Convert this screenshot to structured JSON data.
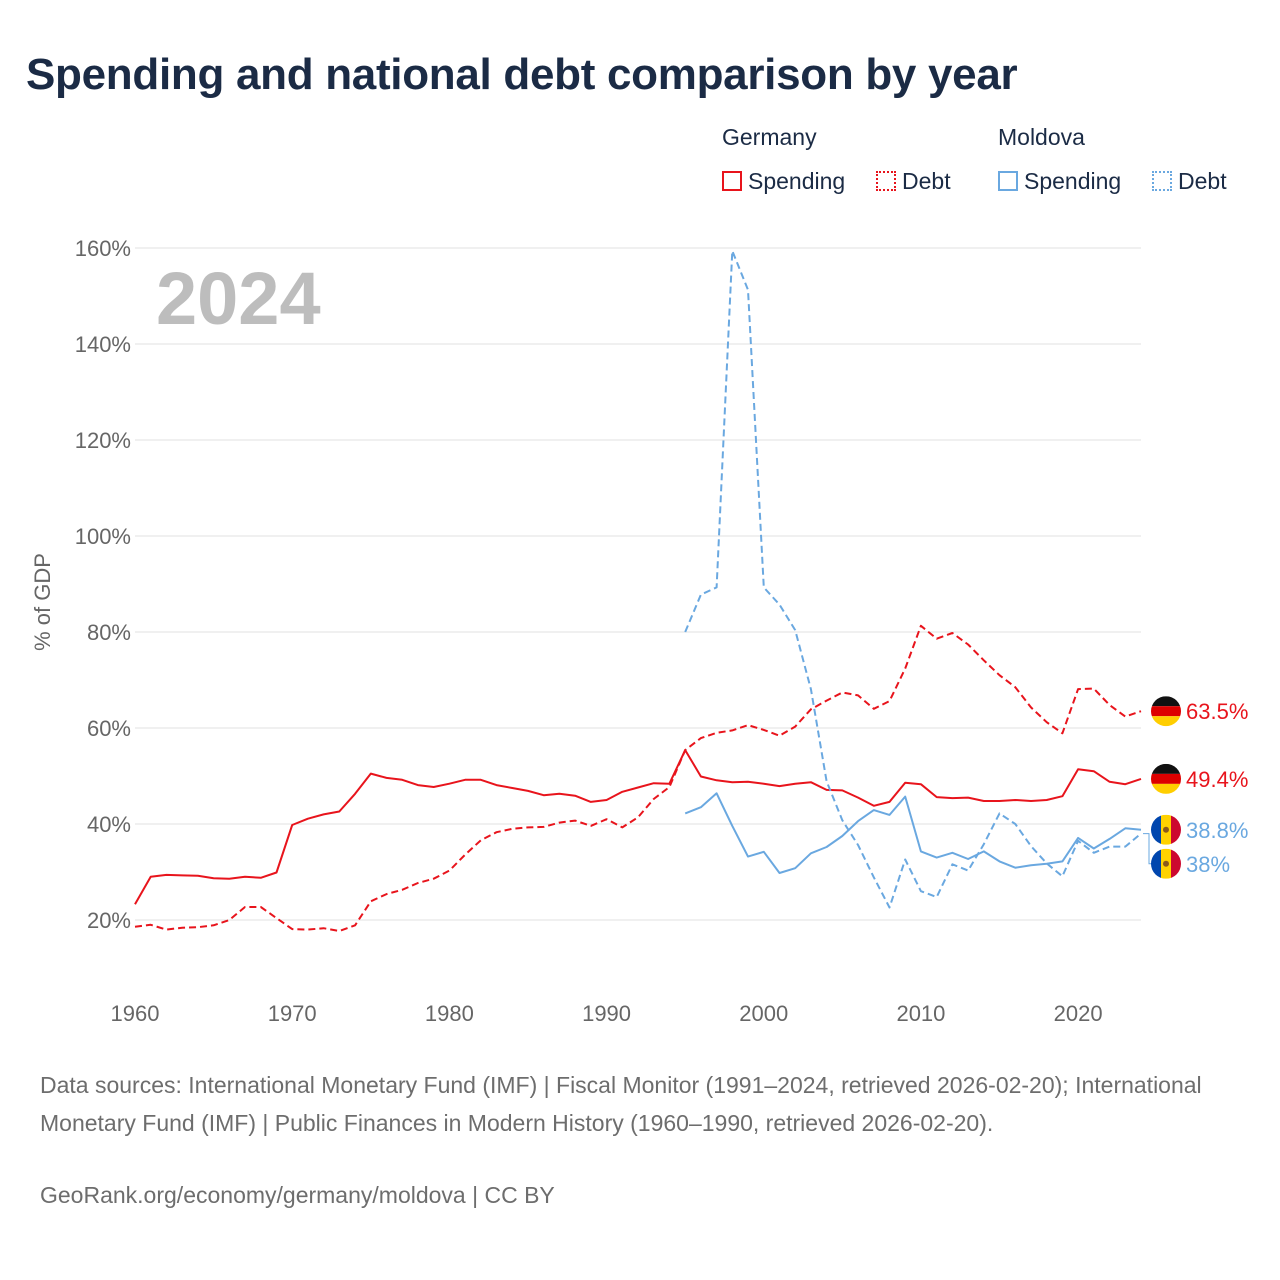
{
  "title": "Spending and national debt comparison by year",
  "legend": {
    "groups": [
      {
        "name": "Germany",
        "items": [
          {
            "label": "Spending",
            "color": "#e8141c",
            "style": "solid"
          },
          {
            "label": "Debt",
            "color": "#e8141c",
            "style": "dotted"
          }
        ]
      },
      {
        "name": "Moldova",
        "items": [
          {
            "label": "Spending",
            "color": "#6aa8e0",
            "style": "solid"
          },
          {
            "label": "Debt",
            "color": "#6aa8e0",
            "style": "dotted"
          }
        ]
      }
    ]
  },
  "year_label": "2024",
  "footer": {
    "sources": "Data sources: International Monetary Fund (IMF) | Fiscal Monitor (1991–2024, retrieved 2026-02-20); International Monetary Fund (IMF) | Public Finances in Modern History (1960–1990, retrieved 2026-02-20).",
    "link": "GeoRank.org/economy/germany/moldova | CC BY"
  },
  "chart_data": {
    "type": "line",
    "title": "Spending and national debt comparison by year",
    "xlabel": "",
    "ylabel": "% of GDP",
    "xlim": [
      1960,
      2024
    ],
    "ylim": [
      5,
      165
    ],
    "xticks": [
      1960,
      1970,
      1980,
      1990,
      2000,
      2010,
      2020
    ],
    "yticks": [
      20,
      40,
      60,
      80,
      100,
      120,
      140,
      160
    ],
    "ytick_labels": [
      "20%",
      "40%",
      "60%",
      "80%",
      "100%",
      "120%",
      "140%",
      "160%"
    ],
    "grid": true,
    "series": [
      {
        "name": "Germany Spending",
        "color": "#e8141c",
        "dash": "solid",
        "start": 1960,
        "end_label": "49.4%",
        "values": [
          23.3,
          29,
          29.4,
          29.3,
          29.2,
          28.7,
          28.6,
          29,
          28.8,
          29.9,
          39.8,
          41.1,
          42,
          42.6,
          46.3,
          50.5,
          49.6,
          49.2,
          48.1,
          47.7,
          48.4,
          49.2,
          49.2,
          48.1,
          47.5,
          46.9,
          46,
          46.3,
          45.9,
          44.6,
          45,
          46.7,
          47.6,
          48.5,
          48.4,
          55.4,
          49.9,
          49.1,
          48.7,
          48.8,
          48.4,
          47.9,
          48.4,
          48.7,
          47.1,
          47,
          45.5,
          43.8,
          44.6,
          48.6,
          48.3,
          45.6,
          45.4,
          45.5,
          44.8,
          44.8,
          45,
          44.8,
          45,
          45.8,
          51.4,
          51,
          48.8,
          48.3,
          49.4
        ]
      },
      {
        "name": "Germany Debt",
        "color": "#e8141c",
        "dash": "dotted",
        "start": 1960,
        "end_label": "63.5%",
        "values": [
          18.6,
          19,
          18,
          18.4,
          18.5,
          18.9,
          20,
          22.7,
          22.7,
          20.4,
          18.1,
          18,
          18.3,
          17.7,
          18.9,
          23.9,
          25.4,
          26.3,
          27.7,
          28.6,
          30.3,
          33.6,
          36.6,
          38.3,
          39,
          39.3,
          39.4,
          40.3,
          40.7,
          39.6,
          41,
          39.3,
          41.4,
          45.2,
          47.7,
          55.4,
          57.9,
          59,
          59.5,
          60.6,
          59.6,
          58.4,
          60.3,
          63.9,
          65.7,
          67.4,
          66.8,
          64,
          65.6,
          72.4,
          81.3,
          78.6,
          79.8,
          77.4,
          74.1,
          71,
          68.5,
          64.3,
          61.2,
          58.9,
          68.1,
          68.2,
          64.8,
          62.4,
          63.5
        ]
      },
      {
        "name": "Moldova Spending",
        "color": "#6aa8e0",
        "dash": "solid",
        "start": 1995,
        "end_label": "38.8%",
        "values": [
          42.2,
          43.5,
          46.4,
          39.6,
          33.2,
          34.2,
          29.8,
          30.8,
          33.9,
          35.2,
          37.5,
          40.6,
          42.9,
          41.9,
          45.7,
          34.3,
          33,
          34,
          32.7,
          34.3,
          32.2,
          30.9,
          31.4,
          31.7,
          32.2,
          37.1,
          34.9,
          36.9,
          39.1,
          38.8
        ]
      },
      {
        "name": "Moldova Debt",
        "color": "#6aa8e0",
        "dash": "dotted",
        "start": 1995,
        "end_label": "38%",
        "values": [
          80,
          87.8,
          89.3,
          159.4,
          151.3,
          89.3,
          85.7,
          80.4,
          68.1,
          48.9,
          40.8,
          35.6,
          28.9,
          22.6,
          32.6,
          26,
          24.8,
          31.6,
          30.3,
          35.8,
          42.2,
          40,
          35.4,
          31.8,
          29.1,
          36.5,
          34,
          35.3,
          35.3,
          38
        ]
      }
    ]
  }
}
